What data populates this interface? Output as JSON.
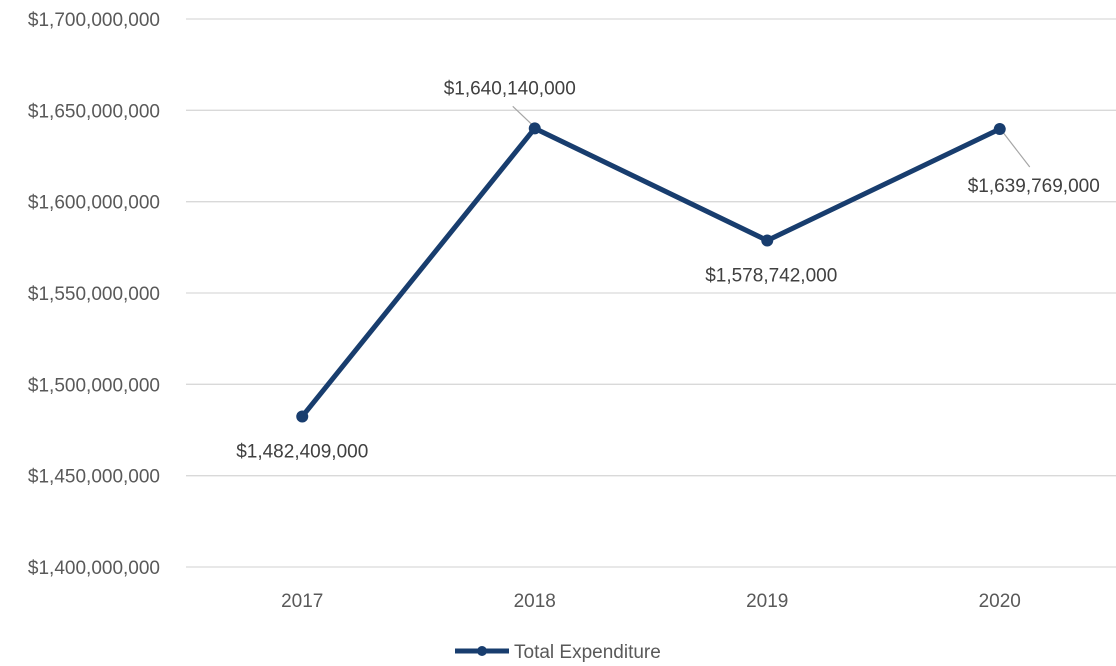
{
  "chart_data": {
    "type": "line",
    "title": "",
    "xlabel": "",
    "ylabel": "",
    "categories": [
      "2017",
      "2018",
      "2019",
      "2020"
    ],
    "series": [
      {
        "name": "Total Expenditure",
        "values": [
          1482409000,
          1640140000,
          1578742000,
          1639769000
        ],
        "labels": [
          "$1,482,409,000",
          "$1,640,140,000",
          "$1,578,742,000",
          "$1,639,769,000"
        ],
        "color": "#183d6e"
      }
    ],
    "ylim": [
      1400000000,
      1700000000
    ],
    "yticks": [
      {
        "value": 1700000000,
        "label": "$1,700,000,000"
      },
      {
        "value": 1650000000,
        "label": "$1,650,000,000"
      },
      {
        "value": 1600000000,
        "label": "$1,600,000,000"
      },
      {
        "value": 1550000000,
        "label": "$1,550,000,000"
      },
      {
        "value": 1500000000,
        "label": "$1,500,000,000"
      },
      {
        "value": 1450000000,
        "label": "$1,450,000,000"
      },
      {
        "value": 1400000000,
        "label": "$1,400,000,000"
      }
    ],
    "grid": true,
    "legend": {
      "position": "bottom-center",
      "label": "Total Expenditure"
    }
  }
}
